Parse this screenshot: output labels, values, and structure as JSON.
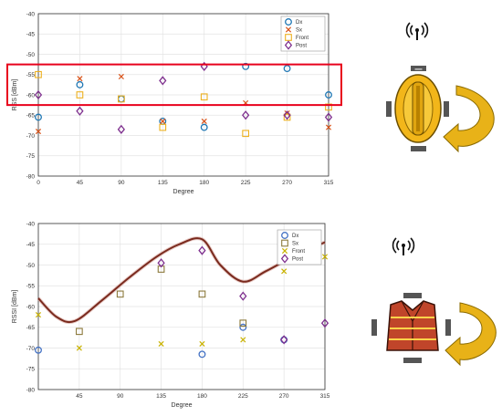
{
  "chart_data": [
    {
      "type": "scatter",
      "xlabel": "Degree",
      "ylabel": "RSS [dBm]",
      "xlim": [
        0,
        315
      ],
      "ylim": [
        -80,
        -40
      ],
      "xticks": [
        "0",
        "45",
        "90",
        "135",
        "180",
        "225",
        "270",
        "315"
      ],
      "yticks": [
        "-40",
        "-45",
        "-50",
        "-55",
        "-60",
        "-65",
        "-70",
        "-75",
        "-80"
      ],
      "grid": true,
      "legend": "top-right",
      "highlight_band": [
        -52.5,
        -62.5
      ],
      "series": [
        {
          "name": "Dx",
          "marker": "circle",
          "color": "#1f77b4",
          "x": [
            0,
            45,
            90,
            135,
            180,
            225,
            270,
            315
          ],
          "y": [
            -65.5,
            -57.5,
            -61,
            -66.5,
            -68,
            -53,
            -53.5,
            -60
          ]
        },
        {
          "name": "Sx",
          "marker": "x",
          "color": "#d95319",
          "x": [
            0,
            45,
            90,
            135,
            180,
            225,
            270,
            315
          ],
          "y": [
            -69,
            -56,
            -55.5,
            -66.5,
            -66.5,
            -62,
            -64.5,
            -68
          ]
        },
        {
          "name": "Front",
          "marker": "square",
          "color": "#edb120",
          "x": [
            0,
            45,
            90,
            135,
            180,
            225,
            270,
            315
          ],
          "y": [
            -55,
            -60,
            -61,
            -68,
            -60.5,
            -69.5,
            -65.5,
            -63
          ]
        },
        {
          "name": "Post",
          "marker": "diamond",
          "color": "#7e2f8e",
          "x": [
            0,
            45,
            90,
            135,
            180,
            225,
            270,
            315
          ],
          "y": [
            -60,
            -64,
            -68.5,
            -56.5,
            -53,
            -65,
            -65,
            -65.5
          ]
        }
      ]
    },
    {
      "type": "scatter",
      "xlabel": "Degree",
      "ylabel": "RSSI [dBm]",
      "xlim": [
        0,
        315
      ],
      "ylim": [
        -80,
        -40
      ],
      "xticks": [
        "45",
        "90",
        "135",
        "180",
        "225",
        "270",
        "315"
      ],
      "yticks": [
        "-40",
        "-45",
        "-50",
        "-55",
        "-60",
        "-65",
        "-70",
        "-75",
        "-80"
      ],
      "grid": true,
      "legend": "top-right",
      "trend_line": {
        "x": [
          0,
          20,
          40,
          70,
          100,
          130,
          155,
          180,
          200,
          225,
          250,
          280,
          315
        ],
        "y": [
          -58,
          -62.5,
          -63.5,
          -58.5,
          -53,
          -48,
          -45,
          -43.8,
          -50,
          -54,
          -51.5,
          -48,
          -44.5
        ]
      },
      "series": [
        {
          "name": "Dx",
          "marker": "circle",
          "color": "#4472c4",
          "x": [
            0,
            180,
            225,
            270
          ],
          "y": [
            -70.5,
            -71.5,
            -65,
            -68
          ]
        },
        {
          "name": "Sx",
          "marker": "square",
          "color": "#8c7a3c",
          "x": [
            45,
            90,
            135,
            180,
            225
          ],
          "y": [
            -66,
            -57,
            -51,
            -57,
            -64
          ]
        },
        {
          "name": "Front",
          "marker": "x",
          "color": "#c9b200",
          "x": [
            0,
            45,
            135,
            180,
            225,
            270,
            315
          ],
          "y": [
            -62,
            -70,
            -69,
            -69,
            -68,
            -51.5,
            -48
          ]
        },
        {
          "name": "Post",
          "marker": "diamond",
          "color": "#7e2f8e",
          "x": [
            135,
            180,
            225,
            270,
            315
          ],
          "y": [
            -49.5,
            -46.5,
            -57.5,
            -68,
            -64
          ]
        }
      ]
    }
  ],
  "colors": {
    "grid": "#e3e3e3",
    "highlight": "#e8001c",
    "trend": "#7a2a1e",
    "helmet": "#f2b61a",
    "vest": "#c0452a",
    "arrow": "#e8b218"
  },
  "icons": [
    "antenna-icon",
    "helmet-icon",
    "rotation-arrow-icon",
    "vest-icon"
  ]
}
